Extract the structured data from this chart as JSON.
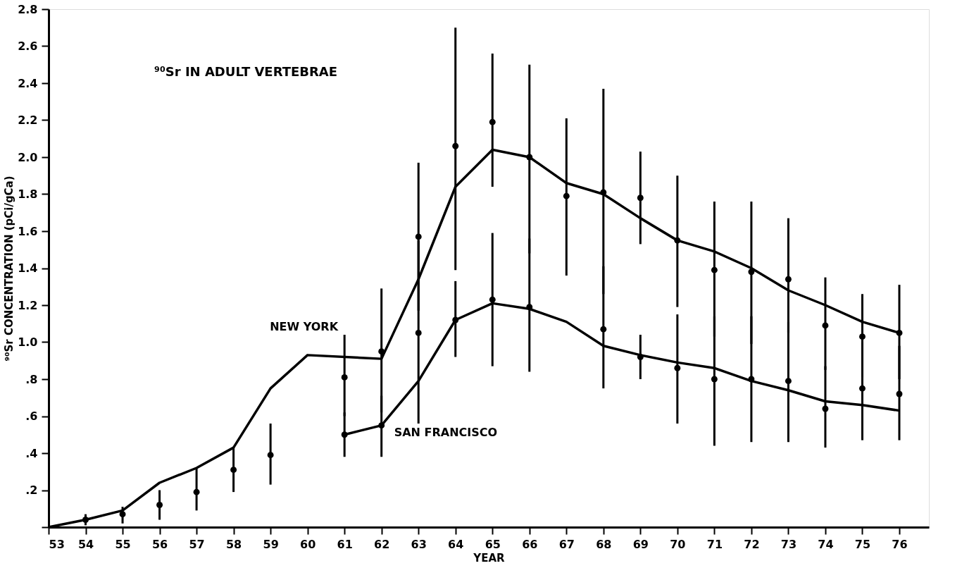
{
  "chart_data": {
    "type": "line",
    "title": "⁹⁰Sr IN ADULT VERTEBRAE",
    "xlabel": "YEAR",
    "ylabel": "⁹⁰Sr CONCENTRATION (pCi/gCa)",
    "xlim": [
      53,
      76.8
    ],
    "xticks": [
      53,
      54,
      55,
      56,
      57,
      58,
      59,
      60,
      61,
      62,
      63,
      64,
      65,
      66,
      67,
      68,
      69,
      70,
      71,
      72,
      73,
      74,
      75,
      76
    ],
    "ylim": [
      0,
      2.8
    ],
    "yticks": [
      {
        "value": 0,
        "label": null
      },
      {
        "value": 0.2,
        "label": ".2"
      },
      {
        "value": 0.4,
        "label": ".4"
      },
      {
        "value": 0.6,
        "label": ".6"
      },
      {
        "value": 0.8,
        "label": ".8"
      },
      {
        "value": 1.0,
        "label": "1.0"
      },
      {
        "value": 1.2,
        "label": "1.2"
      },
      {
        "value": 1.4,
        "label": "1.4"
      },
      {
        "value": 1.6,
        "label": "1.6"
      },
      {
        "value": 1.8,
        "label": "1.8"
      },
      {
        "value": 2.0,
        "label": "2.0"
      },
      {
        "value": 2.2,
        "label": "2.2"
      },
      {
        "value": 2.4,
        "label": "2.4"
      },
      {
        "value": 2.6,
        "label": "2.6"
      },
      {
        "value": 2.8,
        "label": "2.8"
      }
    ],
    "grid": false,
    "line_style": "solid",
    "series": [
      {
        "name": "NEW YORK",
        "color": "#000000",
        "marker": "none",
        "x": [
          53,
          54,
          55,
          56,
          57,
          58,
          59,
          60,
          62,
          63,
          64,
          65,
          66,
          67,
          68,
          69,
          70,
          71,
          72,
          73,
          74,
          75,
          76
        ],
        "values": [
          0,
          0.04,
          0.09,
          0.24,
          0.32,
          0.43,
          0.75,
          0.93,
          0.91,
          1.34,
          1.84,
          2.04,
          2.0,
          1.86,
          1.8,
          1.67,
          1.55,
          1.49,
          1.4,
          1.28,
          1.2,
          1.11,
          1.05
        ]
      },
      {
        "name": "SAN FRANCISCO",
        "color": "#000000",
        "marker": "none",
        "x": [
          61,
          62,
          63,
          64,
          65,
          66,
          67,
          68,
          69,
          70,
          71,
          72,
          73,
          74,
          75,
          76
        ],
        "values": [
          0.5,
          0.55,
          0.79,
          1.12,
          1.21,
          1.18,
          1.11,
          0.98,
          0.93,
          0.89,
          0.86,
          0.79,
          0.74,
          0.68,
          0.66,
          0.63
        ]
      },
      {
        "type": "scatter",
        "color": "#000000",
        "marker": "circle",
        "x": [
          54,
          55,
          56,
          57,
          58,
          59,
          61,
          62,
          63,
          64,
          65,
          66,
          67,
          68,
          69,
          70,
          71,
          72,
          73,
          74,
          75,
          76
        ],
        "values": [
          0.04,
          0.07,
          0.12,
          0.19,
          0.31,
          0.39,
          0.81,
          0.95,
          1.57,
          2.06,
          2.19,
          2.0,
          1.79,
          1.81,
          1.78,
          1.55,
          1.39,
          1.38,
          1.34,
          1.09,
          1.03,
          1.05
        ],
        "errors": [
          [
            0.01,
            0.07
          ],
          [
            0.02,
            0.11
          ],
          [
            0.04,
            0.2
          ],
          [
            0.09,
            0.32
          ],
          [
            0.19,
            0.43
          ],
          [
            0.23,
            0.56
          ],
          [
            0.6,
            1.04
          ],
          [
            0.62,
            1.29
          ],
          [
            1.17,
            1.97
          ],
          [
            1.39,
            2.7
          ],
          [
            1.84,
            2.56
          ],
          [
            1.48,
            2.5
          ],
          [
            1.36,
            2.21
          ],
          [
            1.26,
            2.37
          ],
          [
            1.53,
            2.03
          ],
          [
            1.19,
            1.9
          ],
          [
            1.03,
            1.76
          ],
          [
            0.99,
            1.76
          ],
          [
            1.05,
            1.67
          ],
          [
            0.85,
            1.35
          ],
          [
            0.81,
            1.26
          ],
          [
            0.8,
            1.31
          ]
        ]
      },
      {
        "type": "scatter",
        "color": "#000000",
        "marker": "circle",
        "x": [
          61,
          62,
          63,
          64,
          65,
          66,
          68,
          69,
          70,
          71,
          72,
          73,
          74,
          75,
          76
        ],
        "values": [
          0.5,
          0.55,
          1.05,
          1.12,
          1.23,
          1.19,
          1.07,
          0.92,
          0.86,
          0.8,
          0.8,
          0.79,
          0.64,
          0.75,
          0.72
        ],
        "errors": [
          [
            0.38,
            0.62
          ],
          [
            0.38,
            0.71
          ],
          [
            0.56,
            1.55
          ],
          [
            0.92,
            1.33
          ],
          [
            0.87,
            1.59
          ],
          [
            0.84,
            1.56
          ],
          [
            0.75,
            1.41
          ],
          [
            0.8,
            1.04
          ],
          [
            0.56,
            1.15
          ],
          [
            0.44,
            1.14
          ],
          [
            0.46,
            1.14
          ],
          [
            0.46,
            1.11
          ],
          [
            0.43,
            0.87
          ],
          [
            0.47,
            1.0
          ],
          [
            0.47,
            0.98
          ]
        ]
      }
    ]
  }
}
